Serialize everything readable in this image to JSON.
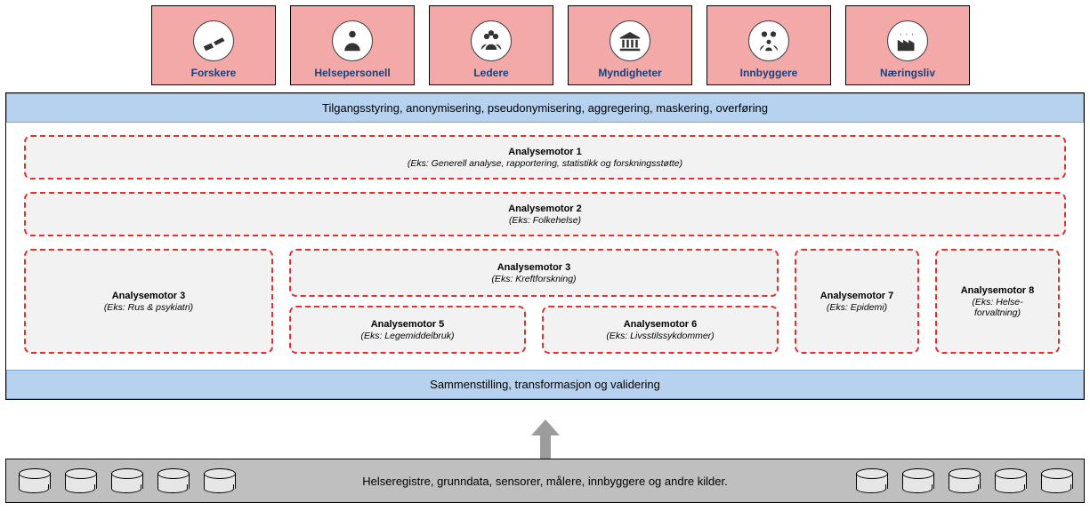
{
  "colors": {
    "actor_bg": "#f4a9a9",
    "actor_text": "#1b3f77",
    "bar_bg": "#b7d2ee",
    "engine_bg": "#f2f2f2",
    "engine_border": "#e03030",
    "bottom_bg": "#bfbfbf",
    "arrow": "#9c9c9c"
  },
  "actors": [
    {
      "label": "Forskere",
      "icon": "telescope"
    },
    {
      "label": "Helsepersonell",
      "icon": "medic"
    },
    {
      "label": "Ledere",
      "icon": "meeting"
    },
    {
      "label": "Myndigheter",
      "icon": "gov"
    },
    {
      "label": "Innbyggere",
      "icon": "family"
    },
    {
      "label": "Næringsliv",
      "icon": "factory"
    }
  ],
  "top_bar": "Tilgangsstyring, anonymisering, pseudonymisering, aggregering, maskering, overføring",
  "engines": {
    "e1": {
      "title": "Analysemotor 1",
      "sub": "(Eks: Generell analyse, rapportering, statistikk og forskningsstøtte)"
    },
    "e2": {
      "title": "Analysemotor 2",
      "sub": "(Eks: Folkehelse)"
    },
    "e3a": {
      "title": "Analysemotor 3",
      "sub": "(Eks: Rus & psykiatri)"
    },
    "e3b": {
      "title": "Analysemotor 3",
      "sub": "(Eks: Kreftforskning)"
    },
    "e5": {
      "title": "Analysemotor 5",
      "sub": "(Eks: Legemiddelbruk)"
    },
    "e6": {
      "title": "Analysemotor 6",
      "sub": "(Eks: Livsstilssykdommer)"
    },
    "e7": {
      "title": "Analysemotor 7",
      "sub": "(Eks: Epidemi)"
    },
    "e8": {
      "title": "Analysemotor 8",
      "sub": "(Eks: Helse-\nforvaltning)"
    }
  },
  "bottom_mid_bar": "Sammenstilling, transformasjon og validering",
  "bottom_sources": "Helseregistre, grunndata, sensorer, målere, innbyggere og andre kilder.",
  "db_left_count": 5,
  "db_right_count": 5
}
